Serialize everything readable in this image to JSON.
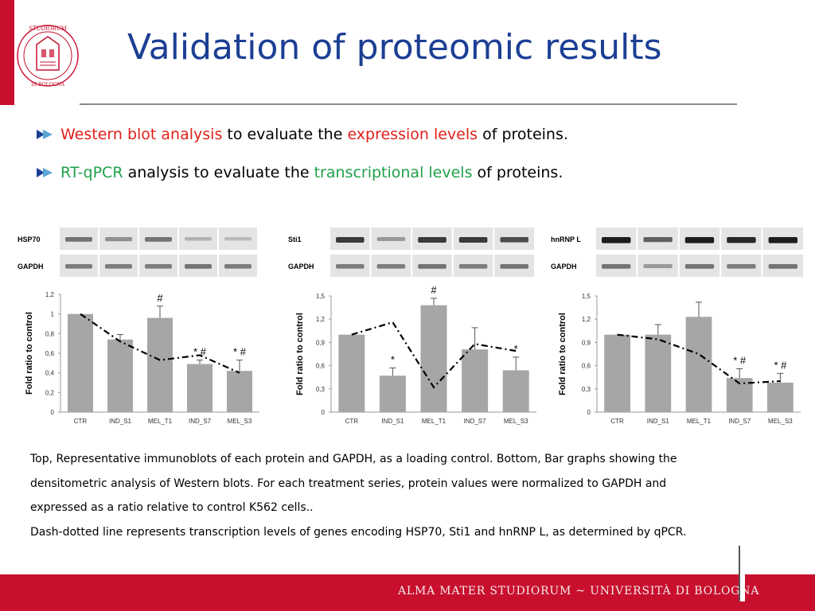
{
  "slide": {
    "title": "Validation of proteomic results",
    "bullets": [
      {
        "parts": [
          {
            "text": "Western blot analysis",
            "color": "red"
          },
          {
            "text": " to evaluate the ",
            "color": "black"
          },
          {
            "text": "expression levels",
            "color": "red"
          },
          {
            "text": " of proteins.",
            "color": "black"
          }
        ]
      },
      {
        "parts": [
          {
            "text": "RT-qPCR",
            "color": "green"
          },
          {
            "text": " analysis to evaluate the ",
            "color": "black"
          },
          {
            "text": "transcriptional levels",
            "color": "green"
          },
          {
            "text": " of proteins.",
            "color": "black"
          }
        ]
      }
    ],
    "caption_lines": [
      "Top, Representative immunoblots of each protein and GAPDH, as a loading control. Bottom, Bar graphs showing the",
      "densitometric analysis of Western blots. For each treatment series, protein values were normalized to GAPDH and",
      "expressed as a ratio relative to control K562 cells..",
      "Dash-dotted line represents transcription levels of genes encoding HSP70, Sti1 and hnRNP L, as determined by qPCR."
    ],
    "footer": "ALMA MATER STUDIORUM ~ UNIVERSITÀ DI BOLOGNA",
    "seal_text": "STUDIORUM · DI BOLOGNA",
    "colors": {
      "title": "#1c3f94",
      "accent_red": "#c8102e",
      "bar": "#a6a6a6",
      "red_text": "#e0201a",
      "green_text": "#1fa14a"
    }
  },
  "chart_data": [
    {
      "type": "bar",
      "blot_labels": [
        "HSP70",
        "GAPDH"
      ],
      "blot_intensity": [
        [
          0.45,
          0.3,
          0.45,
          0.12,
          0.08
        ],
        [
          0.4,
          0.4,
          0.4,
          0.45,
          0.4
        ]
      ],
      "categories": [
        "CTR",
        "IND_S1",
        "MEL_T1",
        "IND_S7",
        "MEL_S3"
      ],
      "values": [
        1.0,
        0.74,
        0.96,
        0.49,
        0.42
      ],
      "errors": [
        0,
        0.05,
        0.12,
        0.04,
        0.11
      ],
      "line_values": [
        1.0,
        0.72,
        0.53,
        0.58,
        0.4
      ],
      "annotations": [
        "",
        "",
        "#",
        "* #",
        "* #"
      ],
      "ylabel": "Fold ratio to control",
      "ylim": [
        0,
        1.2
      ],
      "yticks": [
        "0",
        "0,2",
        "0,4",
        "0,6",
        "0,8",
        "1",
        "1,2"
      ],
      "ytick_values": [
        0,
        0.2,
        0.4,
        0.6,
        0.8,
        1.0,
        1.2
      ]
    },
    {
      "type": "bar",
      "blot_labels": [
        "Sti1",
        "GAPDH"
      ],
      "blot_intensity": [
        [
          0.75,
          0.25,
          0.75,
          0.75,
          0.65
        ],
        [
          0.4,
          0.4,
          0.45,
          0.4,
          0.45
        ]
      ],
      "categories": [
        "CTR",
        "IND_S1",
        "MEL_T1",
        "IND_S7",
        "MEL_S3"
      ],
      "values": [
        1.0,
        0.47,
        1.38,
        0.81,
        0.54
      ],
      "errors": [
        0,
        0.1,
        0.09,
        0.28,
        0.17
      ],
      "line_values": [
        1.0,
        1.16,
        0.32,
        0.88,
        0.79
      ],
      "annotations": [
        "",
        "*",
        "#",
        "",
        "*"
      ],
      "ylabel": "Fold ratio to control",
      "ylim": [
        0,
        1.5
      ],
      "yticks": [
        "0",
        "0,3",
        "0,6",
        "0,9",
        "1,2",
        "1,5"
      ],
      "ytick_values": [
        0,
        0.3,
        0.6,
        0.9,
        1.2,
        1.5
      ]
    },
    {
      "type": "bar",
      "blot_labels": [
        "hnRNP L",
        "GAPDH"
      ],
      "blot_intensity": [
        [
          0.9,
          0.55,
          0.9,
          0.85,
          0.9
        ],
        [
          0.45,
          0.25,
          0.45,
          0.4,
          0.45
        ]
      ],
      "categories": [
        "CTR",
        "IND_S1",
        "MEL_T1",
        "IND_S7",
        "MEL_S3"
      ],
      "values": [
        1.0,
        1.0,
        1.23,
        0.44,
        0.38
      ],
      "errors": [
        0,
        0.13,
        0.19,
        0.12,
        0.12
      ],
      "line_values": [
        1.0,
        0.94,
        0.75,
        0.37,
        0.4
      ],
      "annotations": [
        "",
        "",
        "",
        "* #",
        "* #"
      ],
      "ylabel": "Fold ratio to control",
      "ylim": [
        0,
        1.5
      ],
      "yticks": [
        "0",
        "0,3",
        "0,6",
        "0,9",
        "1,2",
        "1,5"
      ],
      "ytick_values": [
        0,
        0.3,
        0.6,
        0.9,
        1.2,
        1.5
      ]
    }
  ]
}
